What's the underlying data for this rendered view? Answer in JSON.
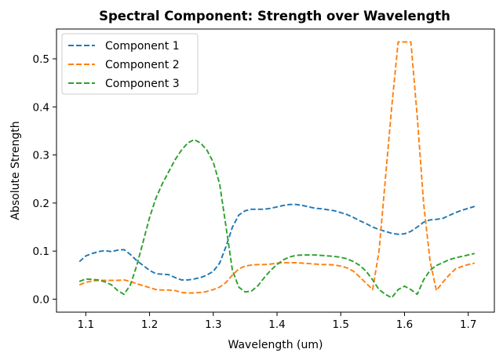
{
  "chart_data": {
    "type": "line",
    "title": "Spectral Component: Strength over Wavelength",
    "xlabel": "Wavelength (um)",
    "ylabel": "Absolute Strength",
    "xlim": [
      1.054,
      1.741
    ],
    "ylim": [
      -0.027,
      0.562
    ],
    "x_ticks": [
      1.1,
      1.2,
      1.3,
      1.4,
      1.5,
      1.6,
      1.7
    ],
    "x_tick_labels": [
      "1.1",
      "1.2",
      "1.3",
      "1.4",
      "1.5",
      "1.6",
      "1.7"
    ],
    "y_ticks": [
      0.0,
      0.1,
      0.2,
      0.3,
      0.4,
      0.5
    ],
    "y_tick_labels": [
      "0.0",
      "0.1",
      "0.2",
      "0.3",
      "0.4",
      "0.5"
    ],
    "grid": false,
    "legend_position": "top-left",
    "line_style": "dashed",
    "series": [
      {
        "name": "Component 1",
        "color": "#1f77b4",
        "points": [
          [
            1.09,
            0.078
          ],
          [
            1.1,
            0.09
          ],
          [
            1.11,
            0.095
          ],
          [
            1.12,
            0.099
          ],
          [
            1.13,
            0.101
          ],
          [
            1.14,
            0.099
          ],
          [
            1.15,
            0.102
          ],
          [
            1.16,
            0.103
          ],
          [
            1.17,
            0.093
          ],
          [
            1.18,
            0.08
          ],
          [
            1.19,
            0.07
          ],
          [
            1.2,
            0.06
          ],
          [
            1.21,
            0.053
          ],
          [
            1.22,
            0.052
          ],
          [
            1.23,
            0.051
          ],
          [
            1.24,
            0.045
          ],
          [
            1.25,
            0.04
          ],
          [
            1.26,
            0.04
          ],
          [
            1.27,
            0.042
          ],
          [
            1.28,
            0.045
          ],
          [
            1.29,
            0.05
          ],
          [
            1.3,
            0.058
          ],
          [
            1.31,
            0.075
          ],
          [
            1.32,
            0.11
          ],
          [
            1.33,
            0.15
          ],
          [
            1.34,
            0.175
          ],
          [
            1.35,
            0.184
          ],
          [
            1.36,
            0.187
          ],
          [
            1.37,
            0.187
          ],
          [
            1.38,
            0.187
          ],
          [
            1.39,
            0.189
          ],
          [
            1.4,
            0.192
          ],
          [
            1.41,
            0.195
          ],
          [
            1.42,
            0.197
          ],
          [
            1.43,
            0.197
          ],
          [
            1.44,
            0.195
          ],
          [
            1.45,
            0.192
          ],
          [
            1.46,
            0.189
          ],
          [
            1.47,
            0.188
          ],
          [
            1.48,
            0.186
          ],
          [
            1.49,
            0.184
          ],
          [
            1.5,
            0.18
          ],
          [
            1.51,
            0.176
          ],
          [
            1.52,
            0.17
          ],
          [
            1.53,
            0.163
          ],
          [
            1.54,
            0.157
          ],
          [
            1.55,
            0.15
          ],
          [
            1.56,
            0.145
          ],
          [
            1.57,
            0.141
          ],
          [
            1.58,
            0.137
          ],
          [
            1.59,
            0.135
          ],
          [
            1.6,
            0.136
          ],
          [
            1.61,
            0.141
          ],
          [
            1.62,
            0.15
          ],
          [
            1.63,
            0.16
          ],
          [
            1.64,
            0.165
          ],
          [
            1.65,
            0.166
          ],
          [
            1.66,
            0.168
          ],
          [
            1.67,
            0.174
          ],
          [
            1.68,
            0.18
          ],
          [
            1.69,
            0.185
          ],
          [
            1.7,
            0.189
          ],
          [
            1.71,
            0.193
          ]
        ]
      },
      {
        "name": "Component 2",
        "color": "#ff7f0e",
        "points": [
          [
            1.09,
            0.03
          ],
          [
            1.1,
            0.035
          ],
          [
            1.11,
            0.038
          ],
          [
            1.12,
            0.039
          ],
          [
            1.13,
            0.039
          ],
          [
            1.14,
            0.039
          ],
          [
            1.15,
            0.039
          ],
          [
            1.16,
            0.04
          ],
          [
            1.17,
            0.037
          ],
          [
            1.18,
            0.032
          ],
          [
            1.19,
            0.028
          ],
          [
            1.2,
            0.024
          ],
          [
            1.21,
            0.02
          ],
          [
            1.22,
            0.019
          ],
          [
            1.23,
            0.019
          ],
          [
            1.24,
            0.018
          ],
          [
            1.25,
            0.014
          ],
          [
            1.26,
            0.013
          ],
          [
            1.27,
            0.013
          ],
          [
            1.28,
            0.014
          ],
          [
            1.29,
            0.016
          ],
          [
            1.3,
            0.02
          ],
          [
            1.31,
            0.025
          ],
          [
            1.32,
            0.035
          ],
          [
            1.33,
            0.05
          ],
          [
            1.34,
            0.063
          ],
          [
            1.35,
            0.069
          ],
          [
            1.36,
            0.071
          ],
          [
            1.37,
            0.072
          ],
          [
            1.38,
            0.072
          ],
          [
            1.39,
            0.073
          ],
          [
            1.4,
            0.075
          ],
          [
            1.41,
            0.076
          ],
          [
            1.42,
            0.076
          ],
          [
            1.43,
            0.076
          ],
          [
            1.44,
            0.075
          ],
          [
            1.45,
            0.074
          ],
          [
            1.46,
            0.073
          ],
          [
            1.47,
            0.072
          ],
          [
            1.48,
            0.072
          ],
          [
            1.49,
            0.071
          ],
          [
            1.5,
            0.069
          ],
          [
            1.51,
            0.065
          ],
          [
            1.52,
            0.058
          ],
          [
            1.53,
            0.046
          ],
          [
            1.54,
            0.033
          ],
          [
            1.55,
            0.02
          ],
          [
            1.56,
            0.1
          ],
          [
            1.57,
            0.25
          ],
          [
            1.58,
            0.4
          ],
          [
            1.59,
            0.535
          ],
          [
            1.6,
            0.535
          ],
          [
            1.61,
            0.535
          ],
          [
            1.62,
            0.38
          ],
          [
            1.63,
            0.2
          ],
          [
            1.64,
            0.08
          ],
          [
            1.65,
            0.018
          ],
          [
            1.66,
            0.035
          ],
          [
            1.67,
            0.05
          ],
          [
            1.68,
            0.063
          ],
          [
            1.69,
            0.068
          ],
          [
            1.7,
            0.072
          ],
          [
            1.71,
            0.075
          ]
        ]
      },
      {
        "name": "Component 3",
        "color": "#2ca02c",
        "points": [
          [
            1.09,
            0.037
          ],
          [
            1.1,
            0.042
          ],
          [
            1.11,
            0.041
          ],
          [
            1.12,
            0.04
          ],
          [
            1.13,
            0.036
          ],
          [
            1.14,
            0.03
          ],
          [
            1.15,
            0.018
          ],
          [
            1.16,
            0.01
          ],
          [
            1.17,
            0.03
          ],
          [
            1.18,
            0.07
          ],
          [
            1.19,
            0.12
          ],
          [
            1.2,
            0.17
          ],
          [
            1.21,
            0.21
          ],
          [
            1.22,
            0.24
          ],
          [
            1.23,
            0.265
          ],
          [
            1.24,
            0.29
          ],
          [
            1.25,
            0.31
          ],
          [
            1.26,
            0.325
          ],
          [
            1.27,
            0.332
          ],
          [
            1.28,
            0.325
          ],
          [
            1.29,
            0.31
          ],
          [
            1.3,
            0.285
          ],
          [
            1.31,
            0.24
          ],
          [
            1.32,
            0.15
          ],
          [
            1.33,
            0.06
          ],
          [
            1.34,
            0.025
          ],
          [
            1.35,
            0.015
          ],
          [
            1.36,
            0.017
          ],
          [
            1.37,
            0.028
          ],
          [
            1.38,
            0.045
          ],
          [
            1.39,
            0.06
          ],
          [
            1.4,
            0.072
          ],
          [
            1.41,
            0.082
          ],
          [
            1.42,
            0.088
          ],
          [
            1.43,
            0.091
          ],
          [
            1.44,
            0.092
          ],
          [
            1.45,
            0.092
          ],
          [
            1.46,
            0.092
          ],
          [
            1.47,
            0.091
          ],
          [
            1.48,
            0.09
          ],
          [
            1.49,
            0.089
          ],
          [
            1.5,
            0.087
          ],
          [
            1.51,
            0.084
          ],
          [
            1.52,
            0.078
          ],
          [
            1.53,
            0.07
          ],
          [
            1.54,
            0.058
          ],
          [
            1.55,
            0.04
          ],
          [
            1.56,
            0.02
          ],
          [
            1.57,
            0.01
          ],
          [
            1.58,
            0.003
          ],
          [
            1.59,
            0.02
          ],
          [
            1.6,
            0.027
          ],
          [
            1.61,
            0.02
          ],
          [
            1.62,
            0.01
          ],
          [
            1.63,
            0.04
          ],
          [
            1.64,
            0.06
          ],
          [
            1.65,
            0.07
          ],
          [
            1.66,
            0.076
          ],
          [
            1.67,
            0.082
          ],
          [
            1.68,
            0.086
          ],
          [
            1.69,
            0.089
          ],
          [
            1.7,
            0.092
          ],
          [
            1.71,
            0.095
          ]
        ]
      }
    ]
  }
}
